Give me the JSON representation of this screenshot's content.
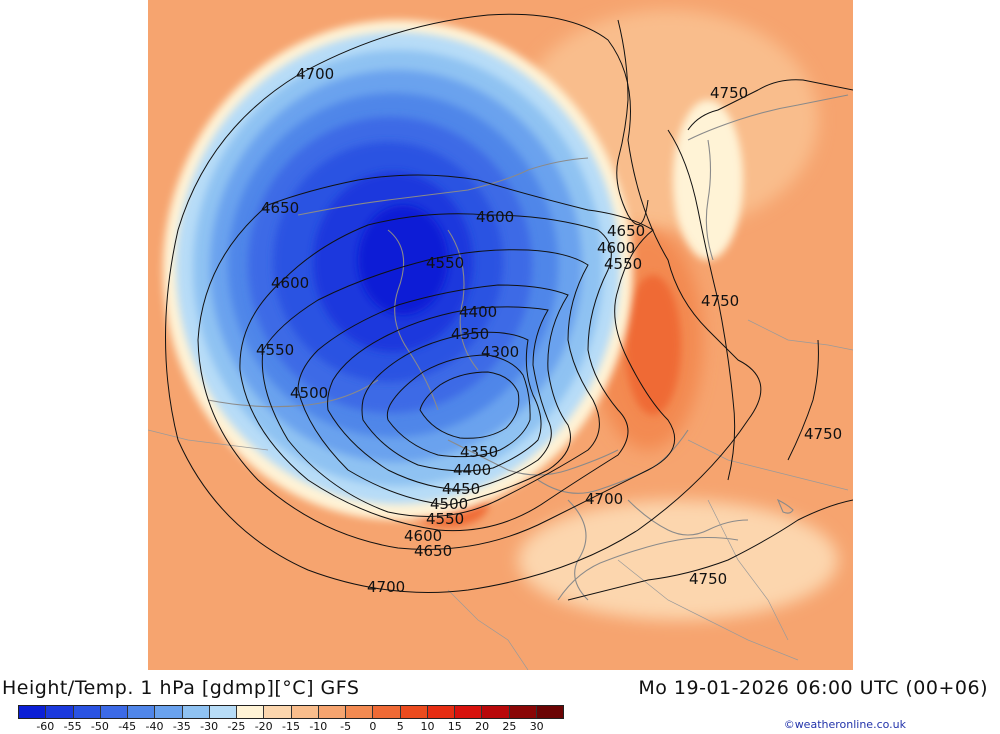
{
  "footer": {
    "title": "Height/Temp. 1 hPa [gdmp][°C] GFS",
    "datetime": "Mo 19-01-2026 06:00 UTC (00+06)",
    "credit": "©weatheronline.co.uk"
  },
  "legend": {
    "colors": [
      "#0b1fd6",
      "#1b39dd",
      "#2a53e2",
      "#3c6ae6",
      "#5086e9",
      "#6aa2ee",
      "#8fc2f2",
      "#b7dcf7",
      "#fff3d6",
      "#fcd6ae",
      "#f9bd8c",
      "#f6a46f",
      "#f38a51",
      "#ef6a35",
      "#eb4b1e",
      "#e62d12",
      "#d8120d",
      "#b8080a",
      "#8a0606",
      "#6b0404"
    ],
    "ticks": [
      "-60",
      "-55",
      "-50",
      "-45",
      "-40",
      "-35",
      "-30",
      "-25",
      "-20",
      "-15",
      "-10",
      "-5",
      "0",
      "5",
      "10",
      "15",
      "20",
      "25",
      "30"
    ]
  },
  "map": {
    "contour_labels": [
      "4700",
      "4750",
      "4650",
      "4600",
      "4650",
      "4600",
      "4550",
      "4550",
      "4600",
      "4400",
      "4750",
      "4350",
      "4550",
      "4300",
      "4500",
      "4750",
      "4350",
      "4400",
      "4450",
      "4700",
      "4500",
      "4550",
      "4600",
      "4650",
      "4750",
      "4700"
    ]
  }
}
